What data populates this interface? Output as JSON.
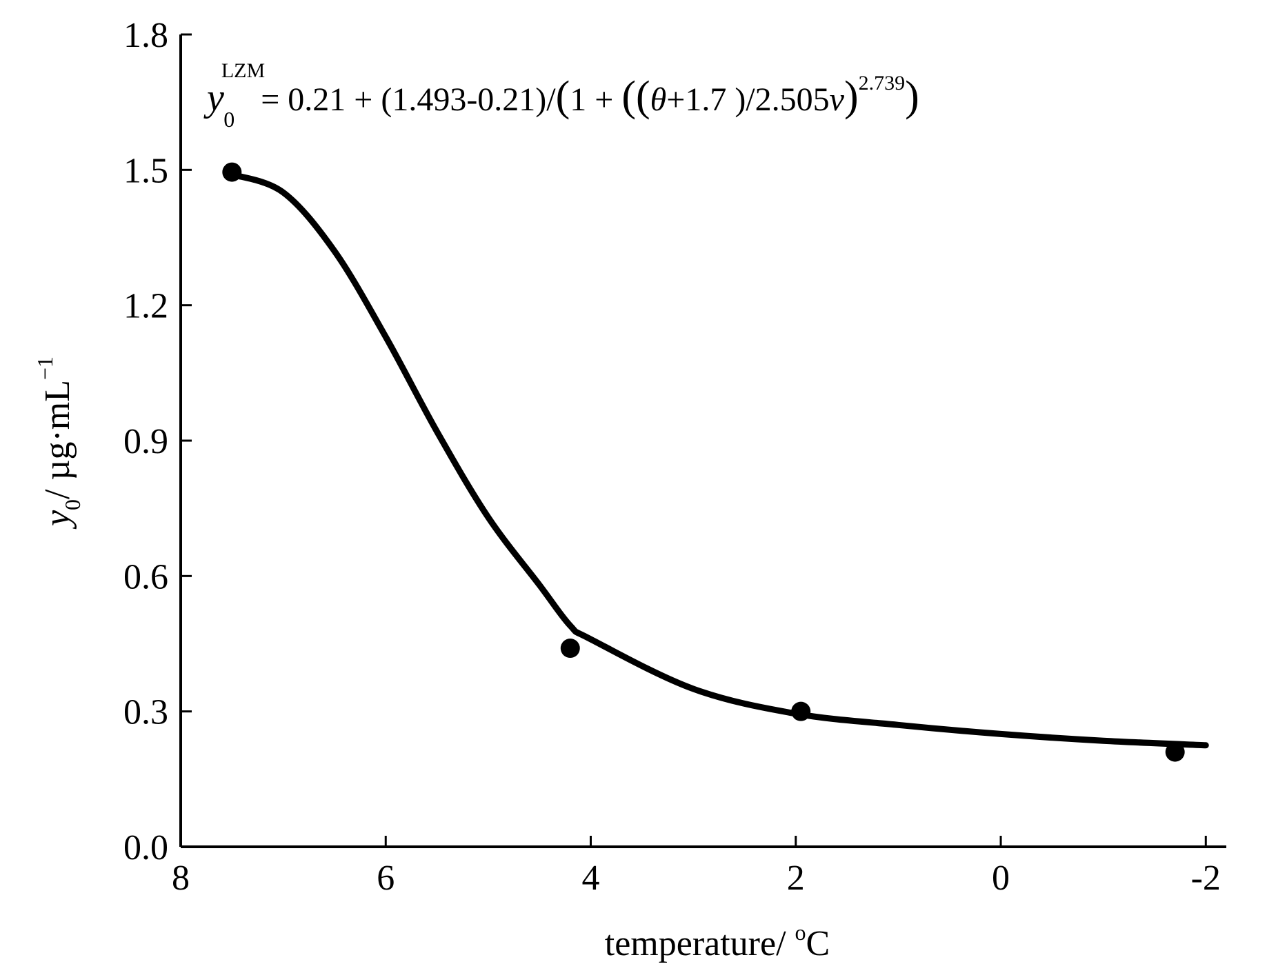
{
  "chart_data": {
    "type": "scatter",
    "xlabel": {
      "main": "temperature/ ",
      "sup": "o",
      "unit": "C"
    },
    "ylabel": {
      "main": "y",
      "sub": "0",
      "rest": "/ µg·mL",
      "sup": "−1"
    },
    "xlim": [
      8,
      -2.2
    ],
    "ylim": [
      0,
      1.8
    ],
    "x_ticks": [
      "8",
      "6",
      "4",
      "2",
      "0",
      "-2"
    ],
    "y_ticks": [
      "0.0",
      "0.3",
      "0.6",
      "0.9",
      "1.2",
      "1.5",
      "1.8"
    ],
    "grid": false,
    "legend": "none",
    "equation": {
      "y": "y",
      "y_sub": "0",
      "y_sup": "LZM",
      "part1": "= 0.21 + (1.493-0.21)/",
      "part2": "1 + ",
      "part3": "(",
      "theta": "θ",
      "part4": "+1.7 )/2.505",
      "v": "v",
      "part5": ")",
      "exp": "2.739",
      "part6": ")"
    },
    "series": [
      {
        "kind": "points",
        "x": [
          7.5,
          4.2,
          1.95,
          -1.7
        ],
        "y": [
          1.495,
          0.44,
          0.3,
          0.21
        ],
        "color": "#000000"
      },
      {
        "kind": "fit-line",
        "x": [
          7.5,
          7.0,
          6.5,
          6.0,
          5.5,
          5.0,
          4.5,
          4.2,
          4.0,
          3.0,
          2.0,
          1.0,
          0.0,
          -1.0,
          -2.0
        ],
        "y": [
          1.49,
          1.45,
          1.32,
          1.13,
          0.92,
          0.73,
          0.58,
          0.49,
          0.46,
          0.35,
          0.295,
          0.27,
          0.25,
          0.235,
          0.225
        ],
        "color": "#000000"
      }
    ]
  }
}
